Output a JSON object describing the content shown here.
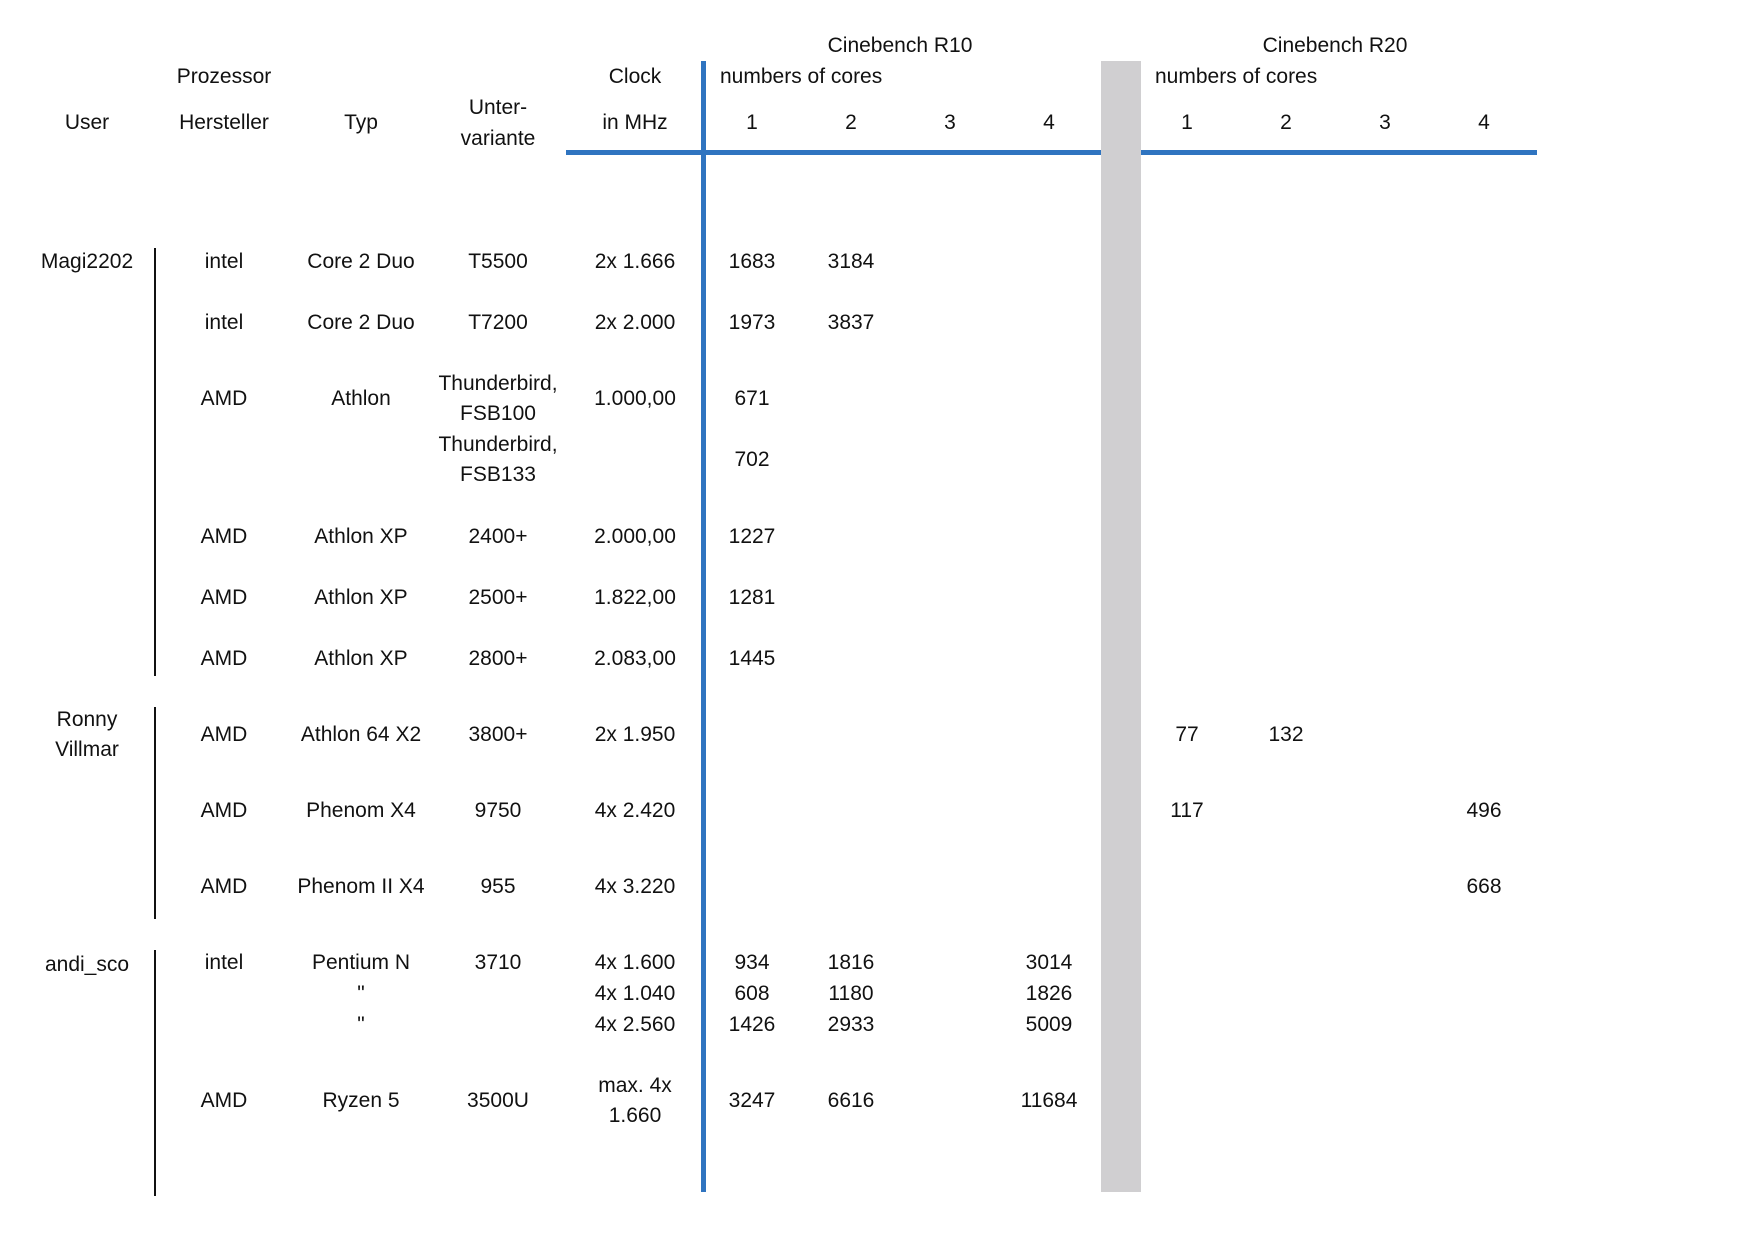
{
  "header": {
    "user": "User",
    "prozessor": "Prozessor",
    "hersteller": "Hersteller",
    "typ": "Typ",
    "unter": "Unter-",
    "variante": "variante",
    "clock": "Clock",
    "in_mhz": "in MHz",
    "r10_title": "Cinebench R10",
    "r10_sub": "numbers of cores",
    "r20_title": "Cinebench R20",
    "r20_sub": "numbers of cores",
    "cores": [
      "1",
      "2",
      "3",
      "4"
    ]
  },
  "users": [
    "Magi2202",
    "Ronny",
    "Villmar",
    "andi_sco"
  ],
  "rows": [
    {
      "hersteller": "intel",
      "typ": "Core 2 Duo",
      "variante": [
        "T5500"
      ],
      "clock": [
        "2x 1.666"
      ],
      "r10": [
        "1683",
        "3184",
        "",
        ""
      ],
      "r20": [
        "",
        "",
        "",
        ""
      ]
    },
    {
      "hersteller": "intel",
      "typ": "Core 2 Duo",
      "variante": [
        "T7200"
      ],
      "clock": [
        "2x 2.000"
      ],
      "r10": [
        "1973",
        "3837",
        "",
        ""
      ],
      "r20": [
        "",
        "",
        "",
        ""
      ]
    },
    {
      "hersteller": "AMD",
      "typ": "Athlon",
      "variante": [
        "Thunderbird,",
        "FSB100"
      ],
      "clock": [
        "1.000,00"
      ],
      "r10": [
        "671",
        "",
        "",
        ""
      ],
      "r20": [
        "",
        "",
        "",
        ""
      ]
    },
    {
      "hersteller": "",
      "typ": "",
      "variante": [
        "Thunderbird,",
        "FSB133"
      ],
      "clock": [
        ""
      ],
      "r10": [
        "702",
        "",
        "",
        ""
      ],
      "r20": [
        "",
        "",
        "",
        ""
      ]
    },
    {
      "hersteller": "AMD",
      "typ": "Athlon XP",
      "variante": [
        "2400+"
      ],
      "clock": [
        "2.000,00"
      ],
      "r10": [
        "1227",
        "",
        "",
        ""
      ],
      "r20": [
        "",
        "",
        "",
        ""
      ]
    },
    {
      "hersteller": "AMD",
      "typ": "Athlon XP",
      "variante": [
        "2500+"
      ],
      "clock": [
        "1.822,00"
      ],
      "r10": [
        "1281",
        "",
        "",
        ""
      ],
      "r20": [
        "",
        "",
        "",
        ""
      ]
    },
    {
      "hersteller": "AMD",
      "typ": "Athlon XP",
      "variante": [
        "2800+"
      ],
      "clock": [
        "2.083,00"
      ],
      "r10": [
        "1445",
        "",
        "",
        ""
      ],
      "r20": [
        "",
        "",
        "",
        ""
      ]
    },
    {
      "hersteller": "AMD",
      "typ": "Athlon 64 X2",
      "variante": [
        "3800+"
      ],
      "clock": [
        "2x 1.950"
      ],
      "r10": [
        "",
        "",
        "",
        ""
      ],
      "r20": [
        "77",
        "132",
        "",
        ""
      ]
    },
    {
      "hersteller": "AMD",
      "typ": "Phenom X4",
      "variante": [
        "9750"
      ],
      "clock": [
        "4x 2.420"
      ],
      "r10": [
        "",
        "",
        "",
        ""
      ],
      "r20": [
        "117",
        "",
        "",
        "496"
      ]
    },
    {
      "hersteller": "AMD",
      "typ": "Phenom II X4",
      "variante": [
        "955"
      ],
      "clock": [
        "4x 3.220"
      ],
      "r10": [
        "",
        "",
        "",
        ""
      ],
      "r20": [
        "",
        "",
        "",
        "668"
      ]
    },
    {
      "hersteller": "intel",
      "typ": "Pentium N",
      "variante": [
        "3710"
      ],
      "clock": [
        "4x 1.600"
      ],
      "r10": [
        "934",
        "1816",
        "",
        "3014"
      ],
      "r20": [
        "",
        "",
        "",
        ""
      ]
    },
    {
      "hersteller": "",
      "typ": "\"",
      "variante": [
        ""
      ],
      "clock": [
        "4x 1.040"
      ],
      "r10": [
        "608",
        "1180",
        "",
        "1826"
      ],
      "r20": [
        "",
        "",
        "",
        ""
      ]
    },
    {
      "hersteller": "",
      "typ": "\"",
      "variante": [
        ""
      ],
      "clock": [
        "4x 2.560"
      ],
      "r10": [
        "1426",
        "2933",
        "",
        "5009"
      ],
      "r20": [
        "",
        "",
        "",
        ""
      ]
    },
    {
      "hersteller": "AMD",
      "typ": "Ryzen 5",
      "variante": [
        "3500U"
      ],
      "clock": [
        "max. 4x",
        "1.660"
      ],
      "r10": [
        "3247",
        "6616",
        "",
        "11684"
      ],
      "r20": [
        "",
        "",
        "",
        ""
      ]
    }
  ]
}
